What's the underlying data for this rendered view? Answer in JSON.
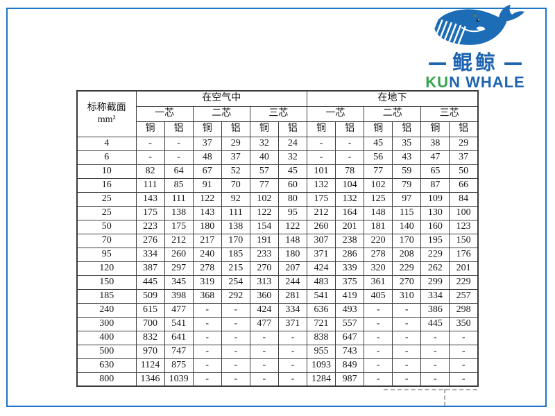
{
  "page": {
    "frame_color": "#1b74c5",
    "background": "#ffffff"
  },
  "logo": {
    "whale_icon_color": "#1d6db6",
    "brand_cn": "鲲鲸",
    "brand_en_green": "KU",
    "brand_en_blue": "N WHALE",
    "text_blue": "#1e64b0",
    "text_green": "#33a44c"
  },
  "table": {
    "corner": {
      "line1": "标称截面",
      "line2": "mm²"
    },
    "groups": [
      {
        "label": "在空气中"
      },
      {
        "label": "在地下"
      }
    ],
    "subgroups": [
      "一芯",
      "二芯",
      "三芯"
    ],
    "materials": [
      "铜",
      "铝"
    ],
    "rows": [
      {
        "section": "4",
        "air": [
          "-",
          "-",
          "37",
          "29",
          "32",
          "24"
        ],
        "ground": [
          "-",
          "-",
          "45",
          "35",
          "38",
          "29"
        ]
      },
      {
        "section": "6",
        "air": [
          "-",
          "-",
          "48",
          "37",
          "40",
          "32"
        ],
        "ground": [
          "-",
          "-",
          "56",
          "43",
          "47",
          "37"
        ]
      },
      {
        "section": "10",
        "air": [
          "82",
          "64",
          "67",
          "52",
          "57",
          "45"
        ],
        "ground": [
          "101",
          "78",
          "77",
          "59",
          "65",
          "50"
        ]
      },
      {
        "section": "16",
        "air": [
          "111",
          "85",
          "91",
          "70",
          "77",
          "60"
        ],
        "ground": [
          "132",
          "104",
          "102",
          "79",
          "87",
          "66"
        ]
      },
      {
        "section": "25",
        "air": [
          "143",
          "111",
          "122",
          "92",
          "102",
          "80"
        ],
        "ground": [
          "175",
          "132",
          "125",
          "97",
          "109",
          "84"
        ]
      },
      {
        "section": "25",
        "air": [
          "175",
          "138",
          "143",
          "111",
          "122",
          "95"
        ],
        "ground": [
          "212",
          "164",
          "148",
          "115",
          "130",
          "100"
        ]
      },
      {
        "section": "50",
        "air": [
          "223",
          "175",
          "180",
          "138",
          "154",
          "122"
        ],
        "ground": [
          "260",
          "201",
          "181",
          "140",
          "160",
          "123"
        ]
      },
      {
        "section": "70",
        "air": [
          "276",
          "212",
          "217",
          "170",
          "191",
          "148"
        ],
        "ground": [
          "307",
          "238",
          "220",
          "170",
          "195",
          "150"
        ]
      },
      {
        "section": "95",
        "air": [
          "334",
          "260",
          "240",
          "185",
          "233",
          "180"
        ],
        "ground": [
          "371",
          "286",
          "278",
          "208",
          "229",
          "176"
        ]
      },
      {
        "section": "120",
        "air": [
          "387",
          "297",
          "278",
          "215",
          "270",
          "207"
        ],
        "ground": [
          "424",
          "339",
          "320",
          "229",
          "262",
          "201"
        ]
      },
      {
        "section": "150",
        "air": [
          "445",
          "345",
          "319",
          "254",
          "313",
          "244"
        ],
        "ground": [
          "483",
          "375",
          "361",
          "270",
          "299",
          "229"
        ]
      },
      {
        "section": "185",
        "air": [
          "509",
          "398",
          "368",
          "292",
          "360",
          "281"
        ],
        "ground": [
          "541",
          "419",
          "405",
          "310",
          "334",
          "257"
        ]
      },
      {
        "section": "240",
        "air": [
          "615",
          "477",
          "-",
          "-",
          "424",
          "334"
        ],
        "ground": [
          "636",
          "493",
          "-",
          "-",
          "386",
          "298"
        ]
      },
      {
        "section": "300",
        "air": [
          "700",
          "541",
          "-",
          "-",
          "477",
          "371"
        ],
        "ground": [
          "721",
          "557",
          "-",
          "-",
          "445",
          "350"
        ]
      },
      {
        "section": "400",
        "air": [
          "832",
          "641",
          "-",
          "-",
          "-",
          "-"
        ],
        "ground": [
          "838",
          "647",
          "-",
          "-",
          "-",
          "-"
        ]
      },
      {
        "section": "500",
        "air": [
          "970",
          "747",
          "-",
          "-",
          "-",
          "-"
        ],
        "ground": [
          "955",
          "743",
          "-",
          "-",
          "-",
          "-"
        ]
      },
      {
        "section": "630",
        "air": [
          "1124",
          "875",
          "-",
          "-",
          "-",
          "-"
        ],
        "ground": [
          "1093",
          "849",
          "-",
          "-",
          "-",
          "-"
        ]
      },
      {
        "section": "800",
        "air": [
          "1346",
          "1039",
          "-",
          "-",
          "-",
          "-"
        ],
        "ground": [
          "1284",
          "987",
          "-",
          "-",
          "-",
          "-"
        ]
      }
    ]
  }
}
